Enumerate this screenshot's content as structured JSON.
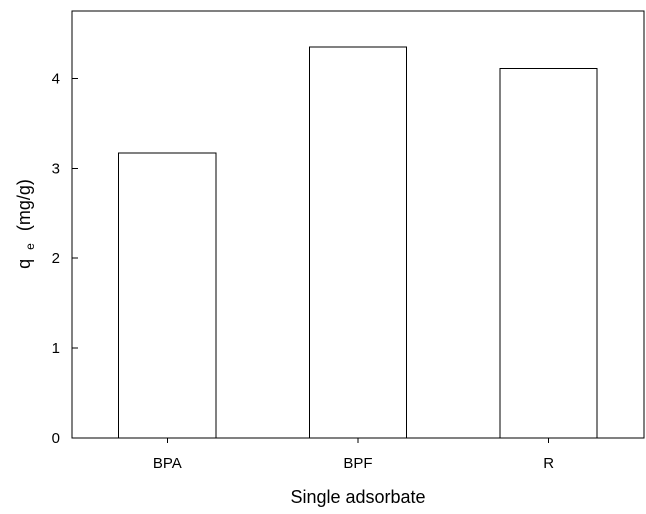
{
  "chart_data": {
    "type": "bar",
    "categories": [
      "BPA",
      "BPF",
      "R"
    ],
    "values": [
      3.17,
      4.35,
      4.11
    ],
    "title": "",
    "xlabel": "Single adsorbate",
    "ylabel": {
      "main": "q",
      "subscript": "e",
      "unit": "(mg/g)"
    },
    "ylim": [
      0,
      4.75
    ],
    "yticks": [
      0,
      1,
      2,
      3,
      4
    ],
    "grid": false,
    "legend": "none",
    "bar_fill": "#ffffff",
    "bar_edge": "#000000"
  }
}
